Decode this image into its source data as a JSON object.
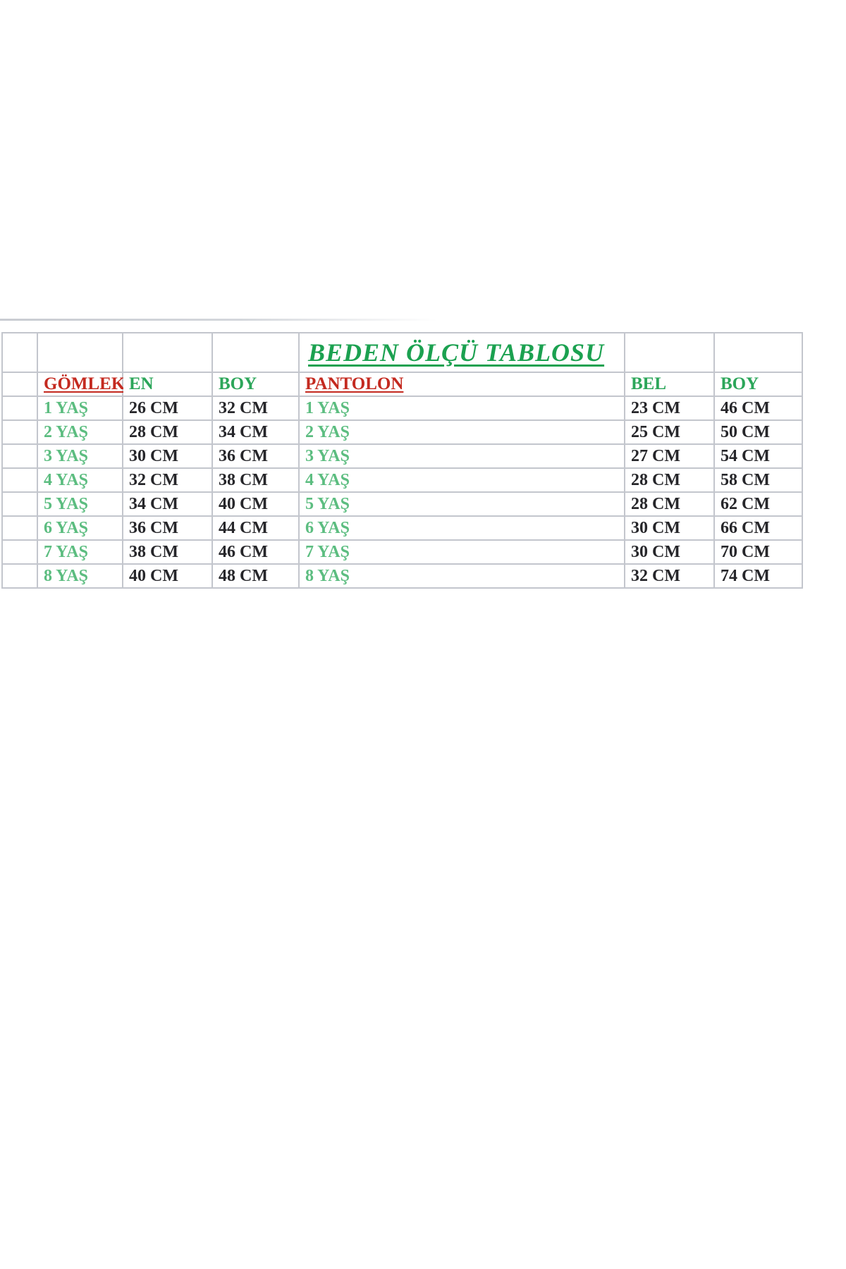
{
  "table": {
    "title": "BEDEN ÖLÇÜ TABLOSU",
    "headers": {
      "shirt": "GÖMLEK",
      "shirt_en": "EN",
      "shirt_boy": "BOY",
      "pants": "PANTOLON",
      "pants_bel": "BEL",
      "pants_boy": "BOY"
    },
    "rows": [
      {
        "age": "1 YAŞ",
        "shirt_en": "26 CM",
        "shirt_boy": "32 CM",
        "pants_bel": "23 CM",
        "pants_boy": "46 CM"
      },
      {
        "age": "2 YAŞ",
        "shirt_en": "28 CM",
        "shirt_boy": "34 CM",
        "pants_bel": "25 CM",
        "pants_boy": "50 CM"
      },
      {
        "age": "3 YAŞ",
        "shirt_en": "30 CM",
        "shirt_boy": "36 CM",
        "pants_bel": "27 CM",
        "pants_boy": "54 CM"
      },
      {
        "age": "4 YAŞ",
        "shirt_en": "32 CM",
        "shirt_boy": "38 CM",
        "pants_bel": "28 CM",
        "pants_boy": "58 CM"
      },
      {
        "age": "5 YAŞ",
        "shirt_en": "34 CM",
        "shirt_boy": "40 CM",
        "pants_bel": "28 CM",
        "pants_boy": "62 CM"
      },
      {
        "age": "6 YAŞ",
        "shirt_en": "36 CM",
        "shirt_boy": "44 CM",
        "pants_bel": "30 CM",
        "pants_boy": "66 CM"
      },
      {
        "age": "7 YAŞ",
        "shirt_en": "38 CM",
        "shirt_boy": "46 CM",
        "pants_bel": "30 CM",
        "pants_boy": "70 CM"
      },
      {
        "age": "8 YAŞ",
        "shirt_en": "40 CM",
        "shirt_boy": "48 CM",
        "pants_bel": "32 CM",
        "pants_boy": "74 CM"
      }
    ],
    "colors": {
      "title_green": "#1ba150",
      "header_green": "#2ca65a",
      "data_green": "#5cbd80",
      "header_red": "#c42a20",
      "value_ink": "#26262a",
      "grid_line": "#c3c6cd",
      "background": "#ffffff"
    }
  }
}
